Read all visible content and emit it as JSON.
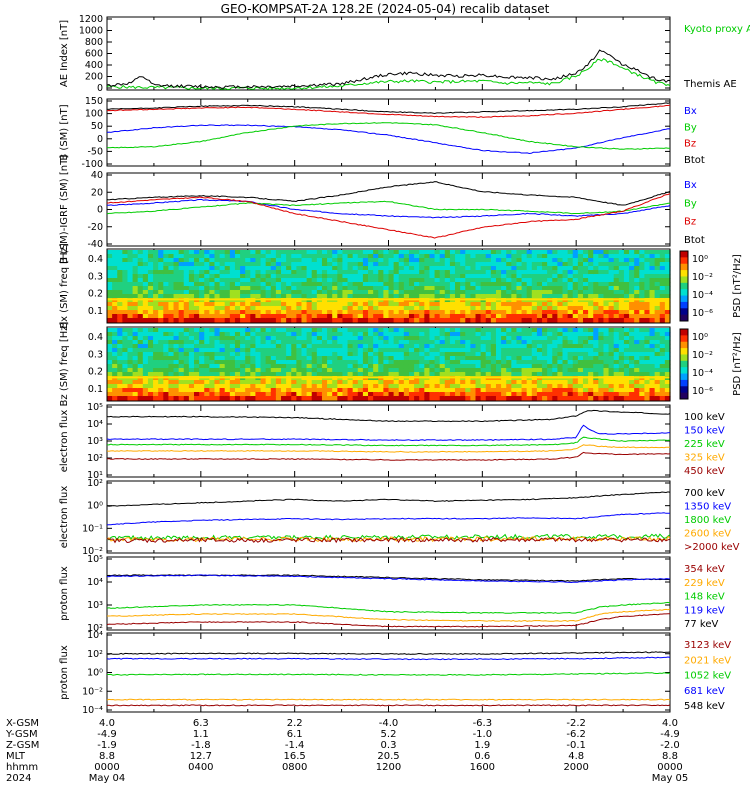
{
  "title": "GEO-KOMPSAT-2A 128.2E (2024-05-04) recalib dataset",
  "colors": {
    "black": "#000000",
    "blue": "#0000ff",
    "green": "#00cc00",
    "red": "#dd0000",
    "orange": "#ffaa00",
    "darkred": "#990000",
    "axis": "#000000"
  },
  "chart_data": [
    {
      "type": "line",
      "id": "ae",
      "ylabel": "AE Index [nT]",
      "ylim": [
        0,
        1300
      ],
      "yticks": [
        "1200",
        "1000",
        "800",
        "600",
        "400",
        "200",
        "0"
      ],
      "legend": [
        "Kyoto proxy AE",
        "Themis AE"
      ],
      "series": [
        {
          "name": "Kyoto proxy AE",
          "color": "#00cc00",
          "x": [
            0,
            1,
            2,
            3,
            4,
            5,
            6,
            7,
            8,
            9,
            10,
            11,
            12,
            13,
            14,
            15,
            16,
            17,
            18,
            19,
            20,
            20.5,
            21,
            21.5,
            22,
            22.5,
            23,
            23.5,
            24
          ],
          "values": [
            60,
            50,
            45,
            40,
            30,
            30,
            35,
            30,
            35,
            50,
            70,
            120,
            150,
            160,
            140,
            150,
            160,
            120,
            130,
            110,
            250,
            380,
            550,
            500,
            380,
            300,
            200,
            120,
            100
          ]
        },
        {
          "name": "Themis AE",
          "color": "#000000",
          "x": [
            0,
            1,
            1.5,
            2,
            3,
            4,
            5,
            6,
            7,
            8,
            9,
            10,
            11,
            12,
            13,
            14,
            15,
            16,
            17,
            18,
            19,
            20,
            20.5,
            21,
            21.5,
            22,
            22.5,
            23,
            23.5,
            24
          ],
          "values": [
            80,
            120,
            250,
            80,
            70,
            60,
            55,
            60,
            60,
            70,
            90,
            110,
            200,
            280,
            300,
            260,
            250,
            270,
            230,
            220,
            190,
            300,
            450,
            700,
            600,
            450,
            380,
            250,
            180,
            150
          ]
        }
      ]
    },
    {
      "type": "line",
      "id": "bsm",
      "ylabel": "B (SM) [nT]",
      "ylim": [
        -110,
        150
      ],
      "yticks": [
        "150",
        "100",
        "50",
        "0",
        "-50",
        "-100"
      ],
      "legend": [
        "Bx",
        "By",
        "Bz",
        "Btot"
      ],
      "series": [
        {
          "name": "Bx",
          "color": "#0000ff",
          "x": [
            0,
            2,
            4,
            6,
            8,
            10,
            12,
            14,
            16,
            18,
            20,
            22,
            24
          ],
          "values": [
            20,
            38,
            48,
            48,
            42,
            30,
            10,
            -20,
            -50,
            -60,
            -40,
            0,
            35
          ]
        },
        {
          "name": "By",
          "color": "#00cc00",
          "x": [
            0,
            2,
            4,
            6,
            8,
            10,
            12,
            14,
            16,
            18,
            20,
            22,
            24
          ],
          "values": [
            -40,
            -35,
            -15,
            20,
            45,
            55,
            58,
            50,
            20,
            -15,
            -35,
            -45,
            -40
          ]
        },
        {
          "name": "Bz",
          "color": "#dd0000",
          "x": [
            0,
            2,
            4,
            6,
            8,
            10,
            12,
            14,
            16,
            18,
            20,
            22,
            24
          ],
          "values": [
            105,
            110,
            115,
            118,
            110,
            100,
            90,
            82,
            80,
            85,
            95,
            110,
            125
          ]
        },
        {
          "name": "Btot",
          "color": "#000000",
          "x": [
            0,
            2,
            4,
            6,
            8,
            10,
            12,
            14,
            16,
            18,
            20,
            22,
            24
          ],
          "values": [
            110,
            115,
            122,
            125,
            120,
            110,
            100,
            95,
            100,
            105,
            110,
            120,
            135
          ]
        }
      ]
    },
    {
      "type": "line",
      "id": "bdiff",
      "ylabel": "B (SM)-IGRF (SM) [nT]",
      "ylim": [
        -45,
        45
      ],
      "yticks": [
        "40",
        "20",
        "0",
        "-20",
        "-40"
      ],
      "legend": [
        "Bx",
        "By",
        "Bz",
        "Btot"
      ],
      "series": [
        {
          "name": "Bx",
          "color": "#0000ff",
          "x": [
            0,
            2,
            4,
            6,
            8,
            10,
            12,
            14,
            16,
            18,
            20,
            22,
            24
          ],
          "values": [
            5,
            8,
            12,
            10,
            0,
            -5,
            -8,
            -10,
            -8,
            -5,
            -8,
            -5,
            5
          ]
        },
        {
          "name": "By",
          "color": "#00cc00",
          "x": [
            0,
            2,
            4,
            6,
            8,
            10,
            12,
            14,
            16,
            18,
            20,
            22,
            24
          ],
          "values": [
            -5,
            -2,
            3,
            8,
            5,
            8,
            10,
            0,
            0,
            -2,
            -5,
            -2,
            8
          ]
        },
        {
          "name": "Bz",
          "color": "#dd0000",
          "x": [
            0,
            2,
            4,
            6,
            8,
            10,
            12,
            14,
            16,
            18,
            20,
            22,
            24
          ],
          "values": [
            8,
            12,
            15,
            10,
            -5,
            -15,
            -25,
            -35,
            -22,
            -15,
            -12,
            -2,
            20
          ]
        },
        {
          "name": "Btot",
          "color": "#000000",
          "x": [
            0,
            2,
            4,
            6,
            8,
            10,
            12,
            14,
            16,
            18,
            20,
            22,
            24
          ],
          "values": [
            12,
            15,
            17,
            15,
            10,
            18,
            28,
            34,
            22,
            18,
            15,
            5,
            22
          ]
        }
      ]
    },
    {
      "type": "heatmap",
      "id": "bx-spec",
      "ylabel": "Bx (SM) freq [Hz]",
      "yticks": [
        "0.4",
        "0.3",
        "0.2",
        "0.1"
      ],
      "ylim": [
        0.03,
        0.5
      ],
      "colorbar_label": "PSD [nT²/Hz]",
      "colorbar_ticks": [
        "10⁰",
        "10⁻²",
        "10⁻⁴",
        "10⁻⁶"
      ],
      "banner_freq_hz": 0.16
    },
    {
      "type": "heatmap",
      "id": "bz-spec",
      "ylabel": "Bz (SM) freq [Hz]",
      "yticks": [
        "0.4",
        "0.3",
        "0.2",
        "0.1"
      ],
      "ylim": [
        0.03,
        0.5
      ],
      "colorbar_label": "PSD [nT²/Hz]",
      "colorbar_ticks": [
        "10⁰",
        "10⁻²",
        "10⁻⁴",
        "10⁻⁶"
      ],
      "banner_freq_hz": 0.16
    },
    {
      "type": "line",
      "id": "eflux1",
      "ylabel": "electron flux",
      "log": true,
      "ylim_exp": [
        1,
        5
      ],
      "yticks": [
        "10⁵",
        "10⁴",
        "10³",
        "10²",
        "10¹"
      ],
      "legend": [
        "100 keV",
        "150 keV",
        "225 keV",
        "325 keV",
        "450 keV"
      ],
      "series": [
        {
          "name": "100 keV",
          "color": "#000000",
          "x": [
            0,
            4,
            8,
            12,
            16,
            19,
            20,
            20.5,
            22,
            24
          ],
          "values": [
            4.35,
            4.35,
            4.3,
            4.1,
            4.1,
            4.2,
            4.4,
            4.7,
            4.6,
            4.5
          ]
        },
        {
          "name": "150 keV",
          "color": "#0000ff",
          "x": [
            0,
            4,
            8,
            12,
            16,
            19,
            20,
            20.3,
            20.6,
            21,
            22,
            24
          ],
          "values": [
            3.1,
            3.1,
            3.1,
            3.05,
            3.05,
            3.1,
            3.2,
            3.9,
            3.6,
            3.4,
            3.4,
            3.45
          ]
        },
        {
          "name": "225 keV",
          "color": "#00cc00",
          "x": [
            0,
            4,
            8,
            12,
            16,
            19,
            20,
            20.3,
            21,
            22,
            24
          ],
          "values": [
            2.8,
            2.8,
            2.8,
            2.75,
            2.75,
            2.8,
            2.9,
            3.2,
            3.1,
            3.0,
            3.05
          ]
        },
        {
          "name": "325 keV",
          "color": "#ffaa00",
          "x": [
            0,
            4,
            8,
            12,
            16,
            19,
            20,
            20.3,
            21,
            22,
            24
          ],
          "values": [
            2.45,
            2.45,
            2.45,
            2.4,
            2.4,
            2.45,
            2.55,
            2.8,
            2.7,
            2.65,
            2.65
          ]
        },
        {
          "name": "450 keV",
          "color": "#990000",
          "x": [
            0,
            4,
            8,
            12,
            16,
            19,
            20,
            20.3,
            21,
            22,
            24
          ],
          "values": [
            2.0,
            2.0,
            2.0,
            1.95,
            1.95,
            2.0,
            2.1,
            2.35,
            2.3,
            2.25,
            2.3
          ]
        }
      ]
    },
    {
      "type": "line",
      "id": "eflux2",
      "ylabel": "electron flux",
      "log": true,
      "ylim_exp": [
        -2.3,
        2
      ],
      "yticks": [
        "10²",
        "10⁰",
        "10⁻¹",
        "10⁻²"
      ],
      "legend": [
        "700 keV",
        "1350 keV",
        "1800 keV",
        "2600 keV",
        ">2000 keV"
      ],
      "series": [
        {
          "name": "700 keV",
          "color": "#000000",
          "x": [
            0,
            2,
            4,
            6,
            8,
            10,
            12,
            14,
            16,
            18,
            20,
            22,
            24
          ],
          "values": [
            0.5,
            0.6,
            0.7,
            0.8,
            0.9,
            0.8,
            0.9,
            0.8,
            0.85,
            0.9,
            1.0,
            1.2,
            1.35
          ]
        },
        {
          "name": "1350 keV",
          "color": "#0000ff",
          "x": [
            0,
            2,
            4,
            6,
            8,
            10,
            12,
            14,
            16,
            18,
            20,
            22,
            24
          ],
          "values": [
            -0.6,
            -0.45,
            -0.35,
            -0.3,
            -0.25,
            -0.3,
            -0.25,
            -0.25,
            -0.25,
            -0.2,
            -0.25,
            0.0,
            0.1
          ]
        },
        {
          "name": "1800 keV",
          "color": "#00cc00",
          "x": [
            0,
            24
          ],
          "values": [
            -1.4,
            -1.3
          ]
        },
        {
          "name": "2600 keV",
          "color": "#ffaa00",
          "x": [
            0,
            24
          ],
          "values": [
            -1.5,
            -1.45
          ]
        },
        {
          "name": ">2000 keV",
          "color": "#990000",
          "x": [
            0,
            24
          ],
          "values": [
            -1.55,
            -1.5
          ]
        }
      ]
    },
    {
      "type": "line",
      "id": "pflux1",
      "ylabel": "proton flux",
      "log": true,
      "ylim_exp": [
        1.8,
        5
      ],
      "yticks": [
        "10⁵",
        "10⁴",
        "10³",
        "10²"
      ],
      "legend": [
        "354 keV",
        "229 keV",
        "148 keV",
        "119 keV",
        "77 keV"
      ],
      "series": [
        {
          "name": "77 keV",
          "color": "#000000",
          "x": [
            0,
            4,
            8,
            12,
            16,
            20,
            22,
            24
          ],
          "values": [
            4.2,
            4.2,
            4.2,
            4.1,
            4.0,
            3.95,
            4.05,
            4.0
          ]
        },
        {
          "name": "119 keV",
          "color": "#0000ff",
          "x": [
            0,
            4,
            8,
            12,
            16,
            20,
            22,
            24
          ],
          "values": [
            4.15,
            4.2,
            4.15,
            4.05,
            3.95,
            3.9,
            4.0,
            4.05
          ]
        },
        {
          "name": "148 keV",
          "color": "#00cc00",
          "x": [
            0,
            4,
            8,
            12,
            16,
            20,
            21,
            22,
            24
          ],
          "values": [
            2.75,
            2.9,
            2.9,
            2.6,
            2.55,
            2.55,
            2.8,
            2.9,
            3.0
          ]
        },
        {
          "name": "229 keV",
          "color": "#ffaa00",
          "x": [
            0,
            4,
            8,
            12,
            16,
            20,
            21,
            22,
            24
          ],
          "values": [
            2.4,
            2.5,
            2.5,
            2.25,
            2.2,
            2.2,
            2.5,
            2.6,
            2.7
          ]
        },
        {
          "name": "354 keV",
          "color": "#990000",
          "x": [
            0,
            4,
            8,
            12,
            16,
            20,
            21,
            22,
            24
          ],
          "values": [
            2.05,
            2.15,
            2.15,
            1.95,
            1.95,
            2.0,
            2.25,
            2.4,
            2.5
          ]
        }
      ]
    },
    {
      "type": "line",
      "id": "pflux2",
      "ylabel": "proton flux",
      "log": true,
      "ylim_exp": [
        -4.3,
        4
      ],
      "yticks": [
        "10⁴",
        "10²",
        "10⁰",
        "10⁻²",
        "10⁻⁴"
      ],
      "legend": [
        "3123 keV",
        "2021 keV",
        "1052 keV",
        "681 keV",
        "548 keV"
      ],
      "series": [
        {
          "name": "548 keV",
          "color": "#000000",
          "x": [
            0,
            4,
            8,
            12,
            16,
            20,
            24
          ],
          "values": [
            1.8,
            1.85,
            1.85,
            1.8,
            1.8,
            1.9,
            2.0
          ]
        },
        {
          "name": "681 keV",
          "color": "#0000ff",
          "x": [
            0,
            4,
            8,
            12,
            16,
            20,
            24
          ],
          "values": [
            1.3,
            1.3,
            1.3,
            1.25,
            1.25,
            1.3,
            1.45
          ]
        },
        {
          "name": "1052 keV",
          "color": "#00cc00",
          "x": [
            0,
            4,
            8,
            12,
            16,
            20,
            24
          ],
          "values": [
            -0.4,
            -0.35,
            -0.35,
            -0.4,
            -0.4,
            -0.3,
            -0.2
          ]
        },
        {
          "name": "2021 keV",
          "color": "#ffaa00",
          "x": [
            0,
            24
          ],
          "values": [
            -3.0,
            -3.0
          ]
        },
        {
          "name": "3123 keV",
          "color": "#990000",
          "x": [
            0,
            24
          ],
          "values": [
            -3.6,
            -3.6
          ]
        }
      ]
    }
  ],
  "xaxis": {
    "ticks_hours": [
      0,
      4,
      8,
      12,
      16,
      20,
      24
    ],
    "rows": [
      {
        "label": "X-GSM",
        "values": [
          "4.0",
          "6.3",
          "2.2",
          "-4.0",
          "-6.3",
          "-2.2",
          "4.0"
        ]
      },
      {
        "label": "Y-GSM",
        "values": [
          "-4.9",
          "1.1",
          "6.1",
          "5.2",
          "-1.0",
          "-6.2",
          "-4.9"
        ]
      },
      {
        "label": "Z-GSM",
        "values": [
          "-1.9",
          "-1.8",
          "-1.4",
          "0.3",
          "1.9",
          "-0.1",
          "-2.0"
        ]
      },
      {
        "label": "MLT",
        "values": [
          "8.8",
          "12.7",
          "16.5",
          "20.5",
          "0.6",
          "4.8",
          "8.8"
        ]
      },
      {
        "label": "hhmm",
        "values": [
          "0000",
          "0400",
          "0800",
          "1200",
          "1600",
          "2000",
          "0000"
        ]
      },
      {
        "label": "2024",
        "values": [
          "May 04",
          "",
          "",
          "",
          "",
          "",
          "May 05"
        ]
      }
    ]
  }
}
